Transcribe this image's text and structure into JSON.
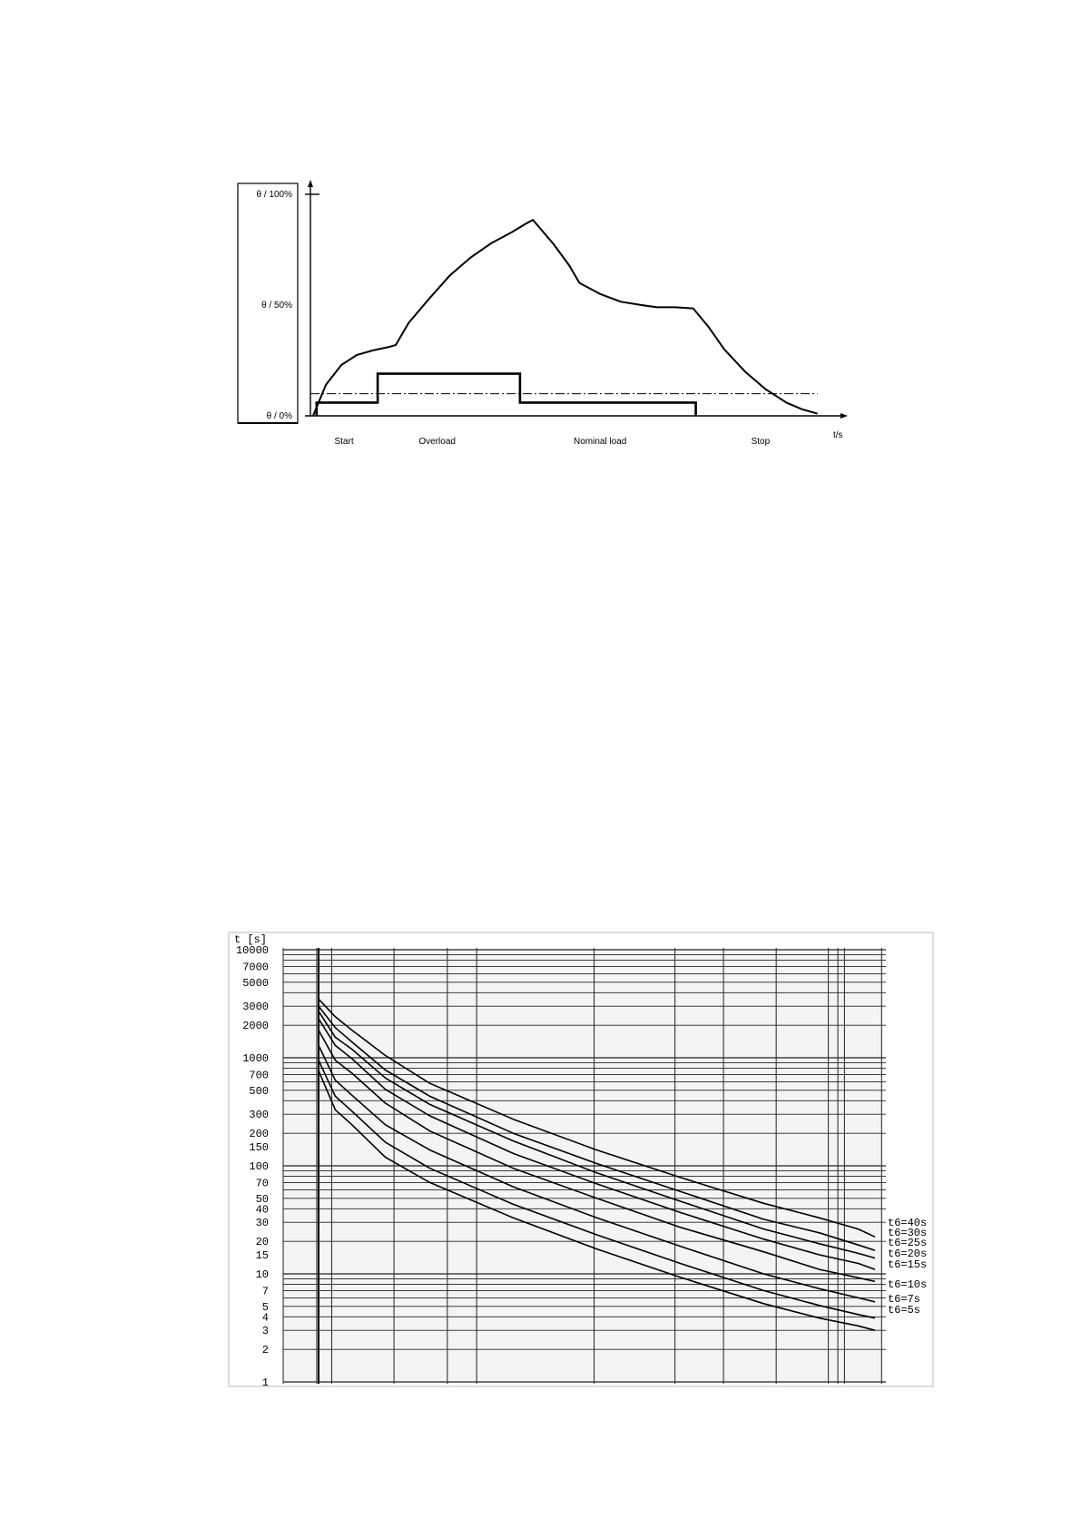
{
  "chart_data": [
    {
      "type": "line",
      "title": "",
      "xlabel": "t/s",
      "ylabel": "",
      "y_ticks": [
        {
          "value": 100,
          "label": "θ / 100%"
        },
        {
          "value": 50,
          "label": "θ / 50%"
        },
        {
          "value": 0,
          "label": "θ / 0%"
        }
      ],
      "phases": [
        {
          "label": "Start",
          "x": 0.065
        },
        {
          "label": "Overload",
          "x": 0.245
        },
        {
          "label": "Nominal load",
          "x": 0.56
        },
        {
          "label": "Stop",
          "x": 0.87
        }
      ],
      "ylim": [
        0,
        100
      ],
      "xlim": [
        0,
        1
      ],
      "grid": false,
      "series": [
        {
          "kind": "temperature",
          "x": [
            0.005,
            0.03,
            0.06,
            0.09,
            0.12,
            0.15,
            0.165,
            0.19,
            0.23,
            0.27,
            0.31,
            0.35,
            0.39,
            0.415,
            0.43,
            0.47,
            0.5,
            0.52,
            0.56,
            0.6,
            0.64,
            0.67,
            0.705,
            0.74,
            0.77,
            0.8,
            0.84,
            0.88,
            0.92,
            0.95,
            0.98
          ],
          "y": [
            0,
            14,
            23,
            27.5,
            29.5,
            31,
            32,
            42,
            53,
            63.5,
            71.5,
            78,
            83,
            86.5,
            88.5,
            77.5,
            68,
            60,
            55,
            51.5,
            50,
            49,
            49,
            48.5,
            40,
            30,
            20,
            12,
            6,
            3,
            1
          ]
        },
        {
          "kind": "load",
          "x": [
            0.012,
            0.012,
            0.13,
            0.13,
            0.405,
            0.405,
            0.745,
            0.745
          ],
          "y": [
            0,
            6,
            6,
            19,
            19,
            6,
            6,
            0
          ]
        },
        {
          "kind": "threshold",
          "x": [
            0.0,
            0.98
          ],
          "y": [
            10,
            10
          ]
        }
      ]
    },
    {
      "type": "line",
      "title": "",
      "ylabel": "t  [s]",
      "xlabel": "",
      "yscale": "log",
      "ylim": [
        1,
        10000
      ],
      "y_tick_labels": [
        "10000",
        "7000",
        "5000",
        "3000",
        "2000",
        "1000",
        "700",
        "500",
        "300",
        "200",
        "150",
        "100",
        "70",
        "50",
        "40",
        "30",
        "20",
        "15",
        "10",
        "7",
        "5",
        "4",
        "3",
        "2",
        "1"
      ],
      "grid": true,
      "x": [
        0,
        0.03,
        0.06,
        0.12,
        0.2,
        0.35,
        0.5,
        0.65,
        0.8,
        0.9,
        0.97,
        1.0
      ],
      "series": [
        {
          "name": "t6=40s",
          "values": [
            3500,
            2400,
            1800,
            1050,
            580,
            270,
            140,
            78,
            45,
            33,
            26,
            22
          ]
        },
        {
          "name": "t6=30s",
          "values": [
            3000,
            1900,
            1400,
            770,
            440,
            200,
            105,
            58,
            32,
            24,
            18.5,
            16.5
          ]
        },
        {
          "name": "t6=25s",
          "values": [
            2700,
            1550,
            1200,
            650,
            370,
            170,
            86,
            47,
            26,
            19,
            15.5,
            14
          ]
        },
        {
          "name": "t6=20s",
          "values": [
            2300,
            1300,
            980,
            510,
            290,
            130,
            68,
            37,
            21,
            15,
            12.5,
            11
          ]
        },
        {
          "name": "t6=15s",
          "values": [
            1800,
            950,
            720,
            380,
            210,
            95,
            50,
            27,
            16,
            11,
            9.2,
            8.5
          ]
        },
        {
          "name": "t6=10s",
          "values": [
            1300,
            620,
            450,
            240,
            140,
            64,
            33,
            18,
            10,
            7.3,
            6,
            5.5
          ]
        },
        {
          "name": "t6=7s",
          "values": [
            950,
            440,
            320,
            165,
            95,
            44,
            23,
            12.5,
            7,
            5.1,
            4.2,
            3.9
          ]
        },
        {
          "name": "t6=5s",
          "values": [
            760,
            330,
            240,
            120,
            70,
            33,
            17,
            9.3,
            5.3,
            3.9,
            3.3,
            3.0
          ]
        }
      ]
    }
  ]
}
